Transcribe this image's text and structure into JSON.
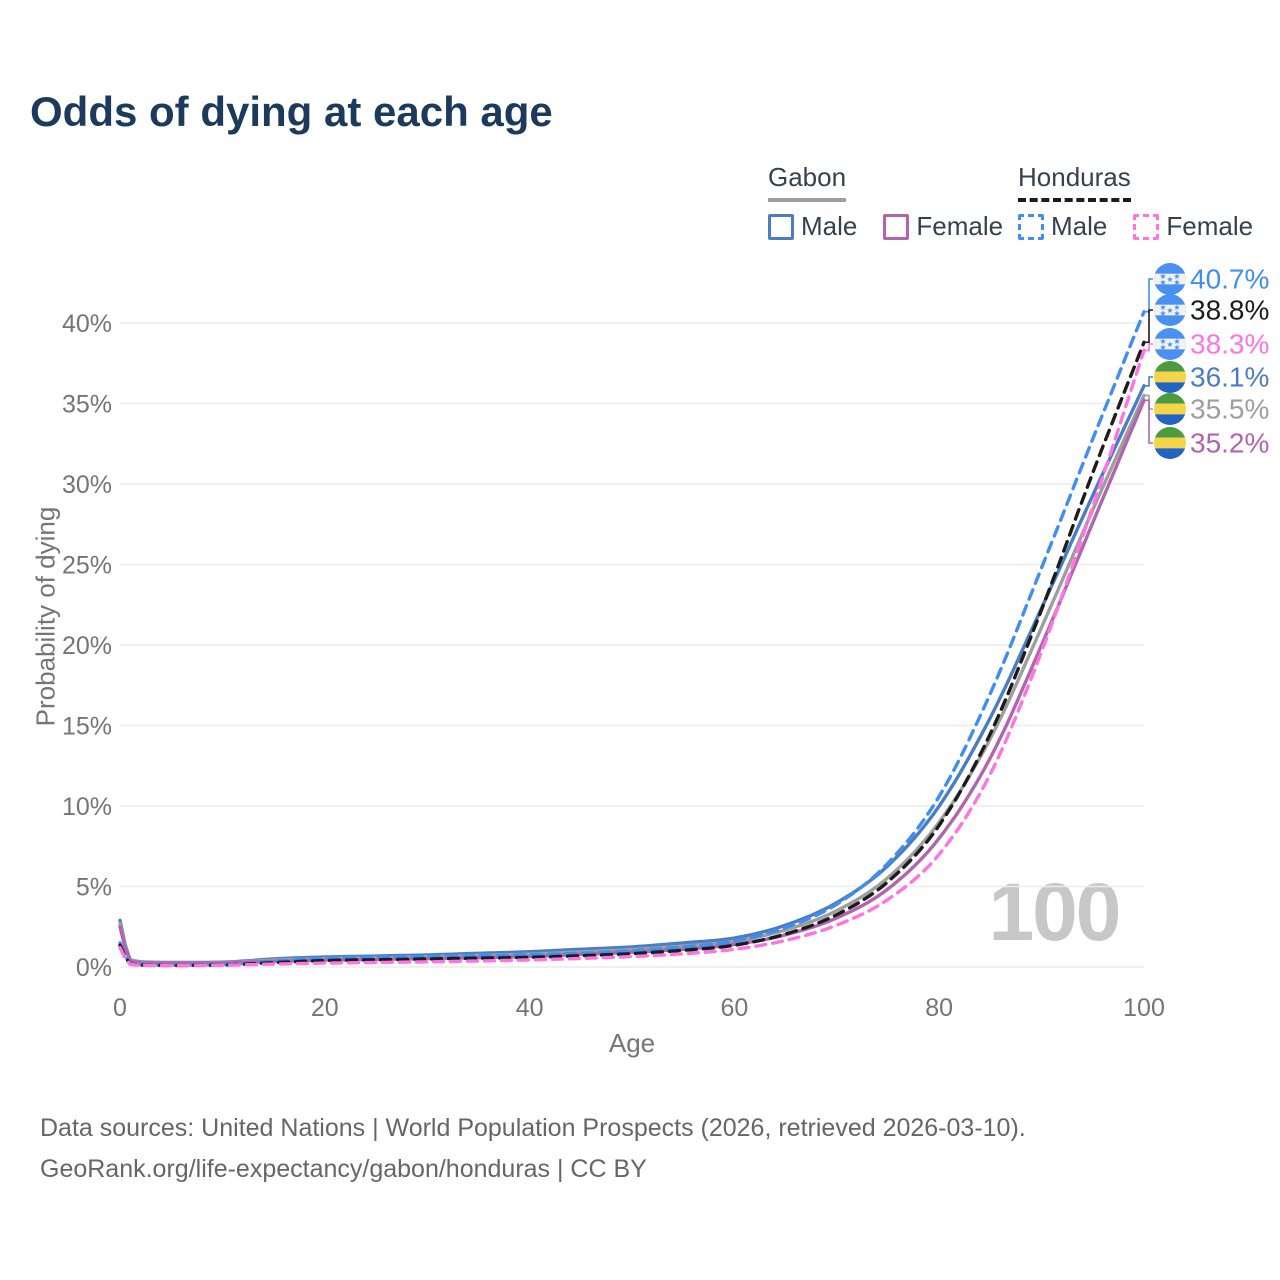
{
  "title": "Odds of dying at each age",
  "watermark": "100",
  "legend": {
    "groups": [
      {
        "label": "Gabon",
        "line_style": "solid",
        "underline_color": "#9e9e9e",
        "items": [
          {
            "label": "Male",
            "color": "#4a7dc4",
            "dashed": false
          },
          {
            "label": "Female",
            "color": "#b165ad",
            "dashed": false
          }
        ]
      },
      {
        "label": "Honduras",
        "line_style": "dashed",
        "underline_color": "#1c1c1c",
        "items": [
          {
            "label": "Male",
            "color": "#418ef2",
            "dashed": true
          },
          {
            "label": "Female",
            "color": "#ff74e0",
            "dashed": true
          }
        ]
      }
    ]
  },
  "chart_data": {
    "type": "line",
    "title": "Odds of dying at each age",
    "xlabel": "Age",
    "ylabel": "Probability of dying",
    "xlim": [
      0,
      100
    ],
    "ylim": [
      0,
      42
    ],
    "grid": "horizontal-only",
    "legend_position": "top-right",
    "x_ticks": [
      0,
      20,
      40,
      60,
      80,
      100
    ],
    "y_tick_values": [
      0,
      5,
      10,
      15,
      20,
      25,
      30,
      35,
      40
    ],
    "y_tick_labels": [
      "0%",
      "5%",
      "10%",
      "15%",
      "20%",
      "25%",
      "30%",
      "35%",
      "40%"
    ],
    "x": [
      0,
      1,
      3,
      5,
      10,
      15,
      20,
      25,
      30,
      35,
      40,
      45,
      50,
      55,
      60,
      65,
      70,
      75,
      80,
      85,
      90,
      95,
      100
    ],
    "series": [
      {
        "name": "Honduras Male",
        "country": "Honduras",
        "sex": "male",
        "color": "#418ef2",
        "dashed": true,
        "end_label": "40.7%",
        "flag": "honduras",
        "values": [
          1.5,
          0.2,
          0.12,
          0.11,
          0.13,
          0.35,
          0.55,
          0.62,
          0.66,
          0.7,
          0.76,
          0.85,
          1.0,
          1.25,
          1.6,
          2.45,
          3.9,
          6.45,
          10.6,
          17.0,
          24.8,
          32.8,
          40.7
        ]
      },
      {
        "name": "Honduras Both sexes",
        "country": "Honduras",
        "sex": "both",
        "color": "#1c1c1c",
        "dashed": true,
        "end_label": "38.8%",
        "flag": "honduras",
        "values": [
          1.35,
          0.18,
          0.11,
          0.1,
          0.12,
          0.27,
          0.4,
          0.45,
          0.5,
          0.55,
          0.6,
          0.7,
          0.83,
          1.04,
          1.35,
          2.05,
          3.25,
          5.3,
          8.8,
          14.5,
          22.2,
          30.7,
          38.8
        ]
      },
      {
        "name": "Honduras Female",
        "country": "Honduras",
        "sex": "female",
        "color": "#ff74e0",
        "dashed": true,
        "end_label": "38.3%",
        "flag": "honduras",
        "values": [
          1.2,
          0.16,
          0.1,
          0.09,
          0.11,
          0.18,
          0.24,
          0.28,
          0.32,
          0.37,
          0.44,
          0.53,
          0.65,
          0.82,
          1.1,
          1.65,
          2.6,
          4.2,
          7.0,
          12.0,
          19.6,
          28.6,
          38.3
        ]
      },
      {
        "name": "Gabon Male",
        "country": "Gabon",
        "sex": "male",
        "color": "#4a7dc4",
        "dashed": false,
        "end_label": "36.1%",
        "flag": "gabon",
        "values": [
          2.9,
          0.45,
          0.3,
          0.28,
          0.3,
          0.5,
          0.62,
          0.68,
          0.75,
          0.85,
          0.95,
          1.1,
          1.25,
          1.5,
          1.8,
          2.6,
          4.0,
          6.3,
          10.0,
          15.5,
          22.3,
          29.3,
          36.1
        ]
      },
      {
        "name": "Gabon Both sexes",
        "country": "Gabon",
        "sex": "both",
        "color": "#9e9e9e",
        "dashed": false,
        "end_label": "35.5%",
        "flag": "gabon",
        "values": [
          2.7,
          0.42,
          0.27,
          0.25,
          0.27,
          0.43,
          0.52,
          0.58,
          0.64,
          0.72,
          0.8,
          0.94,
          1.08,
          1.3,
          1.6,
          2.3,
          3.5,
          5.55,
          9.0,
          14.2,
          21.1,
          28.4,
          35.5
        ]
      },
      {
        "name": "Gabon Female",
        "country": "Gabon",
        "sex": "female",
        "color": "#b165ad",
        "dashed": false,
        "end_label": "35.2%",
        "flag": "gabon",
        "values": [
          2.5,
          0.38,
          0.25,
          0.23,
          0.25,
          0.35,
          0.42,
          0.47,
          0.52,
          0.58,
          0.66,
          0.78,
          0.92,
          1.1,
          1.4,
          2.0,
          3.05,
          4.85,
          8.0,
          13.0,
          20.0,
          27.6,
          35.2
        ]
      }
    ],
    "flag_colors": {
      "honduras_blue": "#4a90f2",
      "honduras_white": "#f2f2f2",
      "gabon_green": "#4d9b40",
      "gabon_yellow": "#f6d44a",
      "gabon_blue": "#2263c3"
    }
  },
  "footer": {
    "line1": "Data sources: United Nations | World Population Prospects (2026, retrieved 2026-03-10).",
    "line2": "GeoRank.org/life-expectancy/gabon/honduras | CC BY"
  }
}
